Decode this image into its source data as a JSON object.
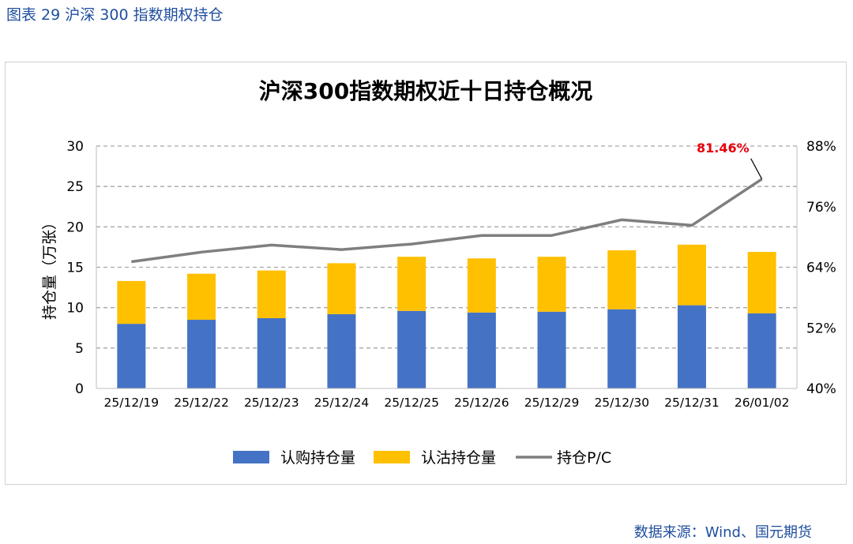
{
  "figure_caption": "图表 29  沪深 300 指数期权持仓",
  "source_note": "数据来源：Wind、国元期货",
  "chart_data": {
    "type": "bar",
    "title": "沪深300指数期权近十日持仓概况",
    "categories": [
      "25/12/19",
      "25/12/22",
      "25/12/23",
      "25/12/24",
      "25/12/25",
      "25/12/26",
      "25/12/29",
      "25/12/30",
      "25/12/31",
      "26/01/02"
    ],
    "ylabel": "持仓量（万张）",
    "ylim": [
      0,
      30
    ],
    "yticks": [
      "0",
      "5",
      "10",
      "15",
      "20",
      "25",
      "30"
    ],
    "y2lim": [
      40,
      88
    ],
    "y2ticks": [
      "40%",
      "52%",
      "64%",
      "76%",
      "88%"
    ],
    "series": [
      {
        "name": "认购持仓量",
        "kind": "stacked-bar",
        "color": "#4472c4",
        "values": [
          8.0,
          8.5,
          8.7,
          9.2,
          9.6,
          9.4,
          9.5,
          9.8,
          10.3,
          9.3
        ]
      },
      {
        "name": "认沽持仓量",
        "kind": "stacked-bar",
        "color": "#ffc000",
        "values": [
          5.3,
          5.7,
          5.9,
          6.3,
          6.7,
          6.7,
          6.8,
          7.3,
          7.5,
          7.6
        ]
      },
      {
        "name": "持仓P/C",
        "kind": "line",
        "axis": "right",
        "color": "#7f7f7f",
        "values": [
          65.1,
          67.0,
          68.4,
          67.5,
          68.6,
          70.3,
          70.3,
          73.4,
          72.3,
          81.46
        ]
      }
    ],
    "annotation": {
      "text": "81.46%",
      "color": "#e8000b"
    },
    "legend_position": "bottom",
    "grid": true
  }
}
